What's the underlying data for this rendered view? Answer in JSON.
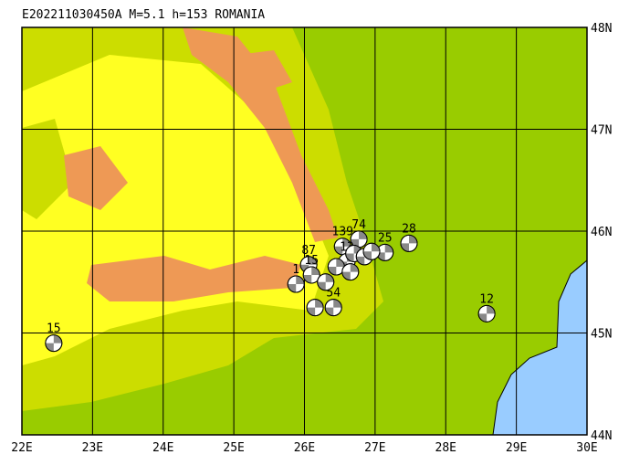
{
  "title": "E202211030450A M=5.1 h=153 ROMANIA",
  "lon_ticks": [
    {
      "value": 22,
      "label": "22E"
    },
    {
      "value": 23,
      "label": "23E"
    },
    {
      "value": 24,
      "label": "24E"
    },
    {
      "value": 25,
      "label": "25E"
    },
    {
      "value": 26,
      "label": "26E"
    },
    {
      "value": 27,
      "label": "27E"
    },
    {
      "value": 28,
      "label": "28E"
    },
    {
      "value": 29,
      "label": "29E"
    },
    {
      "value": 30,
      "label": "30E"
    }
  ],
  "lat_ticks": [
    {
      "value": 44,
      "label": "44N"
    },
    {
      "value": 45,
      "label": "45N"
    },
    {
      "value": 46,
      "label": "46N"
    },
    {
      "value": 47,
      "label": "47N"
    },
    {
      "value": 48,
      "label": "48N"
    }
  ],
  "events": [
    {
      "lon": 22.45,
      "lat": 44.9,
      "label": "15"
    },
    {
      "lon": 26.06,
      "lat": 45.67,
      "label": "87"
    },
    {
      "lon": 26.54,
      "lat": 45.85,
      "label": "139"
    },
    {
      "lon": 26.77,
      "lat": 45.92,
      "label": "74"
    },
    {
      "lon": 27.14,
      "lat": 45.79,
      "label": "25"
    },
    {
      "lon": 27.48,
      "lat": 45.88,
      "label": "28"
    },
    {
      "lon": 28.58,
      "lat": 45.19,
      "label": "12"
    },
    {
      "lon": 26.41,
      "lat": 45.25,
      "label": "54"
    },
    {
      "lon": 25.88,
      "lat": 45.48,
      "label": "1"
    },
    {
      "lon": 26.1,
      "lat": 45.57,
      "label": "15"
    },
    {
      "lon": 26.6,
      "lat": 45.7,
      "label": "13"
    },
    {
      "lon": 26.15,
      "lat": 45.25
    },
    {
      "lon": 26.3,
      "lat": 45.5
    },
    {
      "lon": 26.45,
      "lat": 45.65
    },
    {
      "lon": 26.7,
      "lat": 45.78
    },
    {
      "lon": 26.85,
      "lat": 45.75
    },
    {
      "lon": 26.95,
      "lat": 45.8
    },
    {
      "lon": 26.65,
      "lat": 45.6
    }
  ]
}
